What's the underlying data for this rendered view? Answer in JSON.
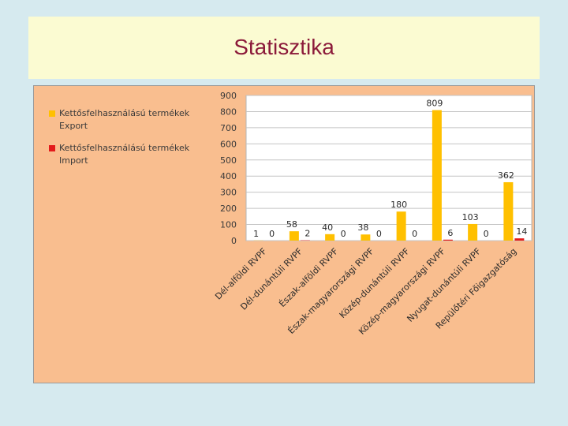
{
  "slide": {
    "title": "Statisztika"
  },
  "colors": {
    "export": "#ffc000",
    "import": "#e31b1b"
  },
  "chart_data": {
    "type": "bar",
    "categories": [
      "Dél-alföldi RVPF",
      "Dél-dunántúli RVPF",
      "Észak-alföldi RVPF",
      "Észak-magyarországi RVPF",
      "Közép-dunántúli RVPF",
      "Közép-magyarországi RVPF",
      "Nyugat-dunántúli RVPF",
      "Repülőtéri Főigazgatóság"
    ],
    "series": [
      {
        "name": "Kettősfelhasználású termékek Export",
        "values": [
          1,
          58,
          40,
          38,
          180,
          809,
          103,
          362
        ]
      },
      {
        "name": "Kettősfelhasználású termékek Import",
        "values": [
          0,
          2,
          0,
          0,
          0,
          6,
          0,
          14
        ]
      }
    ],
    "ylim": [
      0,
      900
    ],
    "yticks": [
      "0",
      "100",
      "200",
      "300",
      "400",
      "500",
      "600",
      "700",
      "800",
      "900"
    ],
    "grid": true,
    "legend": "top-left"
  }
}
